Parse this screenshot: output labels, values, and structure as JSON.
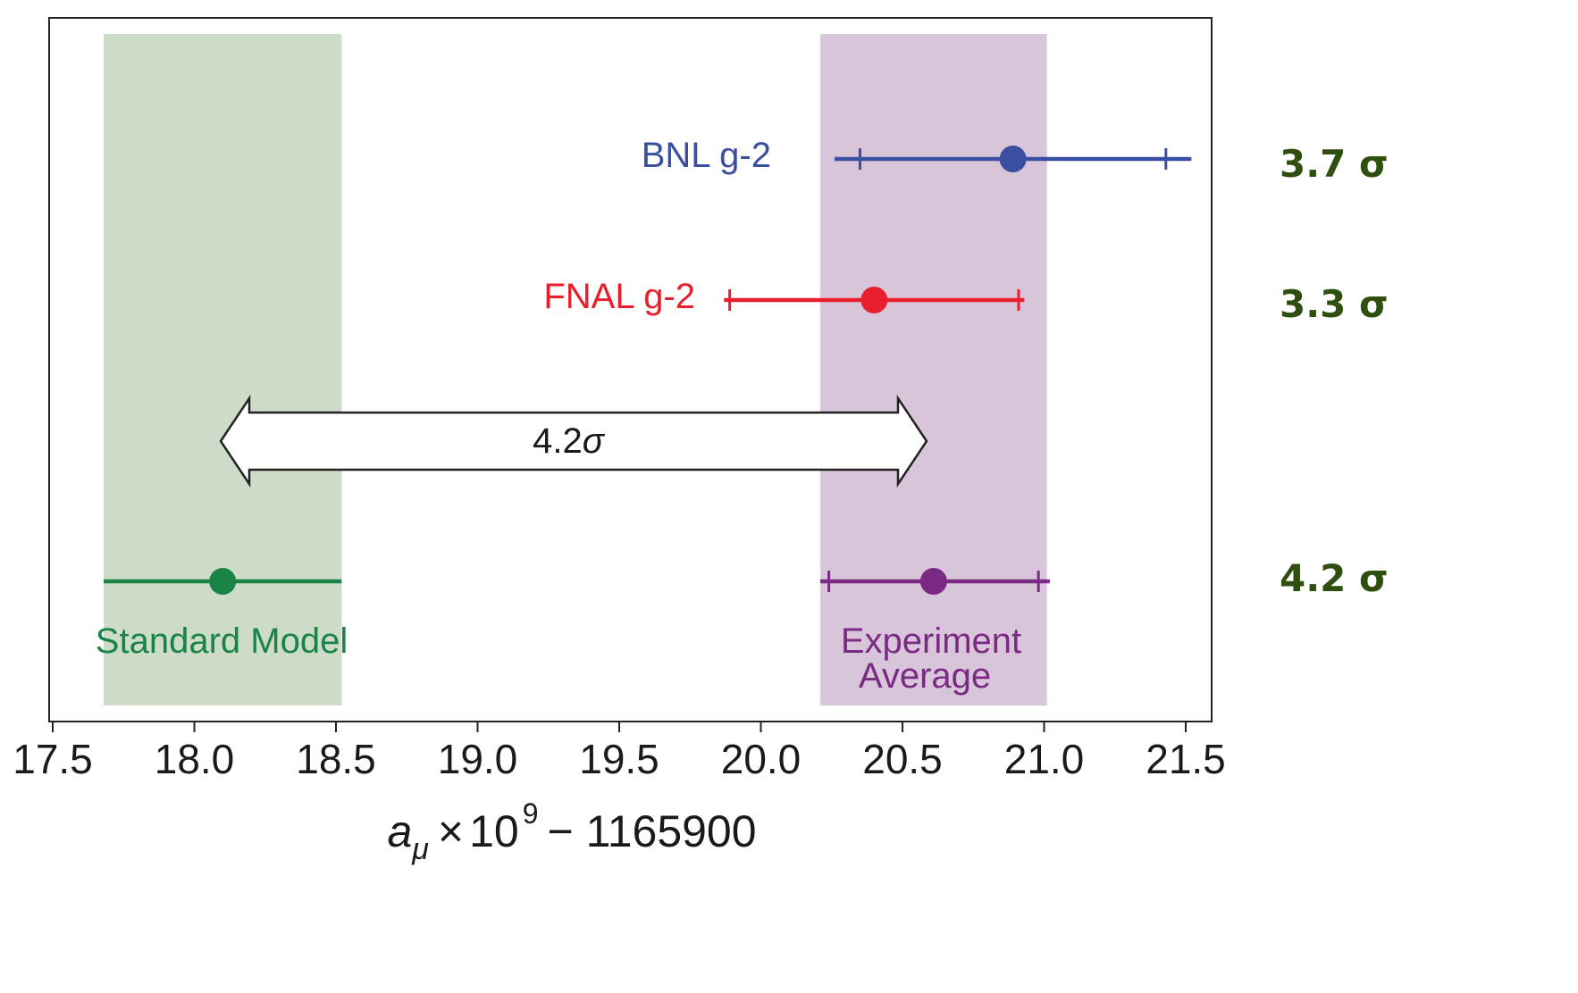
{
  "chart_data": {
    "type": "scatter",
    "title": "",
    "xlabel": {
      "base": "a",
      "subscript": "μ",
      "times": "×",
      "mantissa": "10",
      "exponent": "9",
      "rest": "− 1165900"
    },
    "ylabel": "",
    "xlim": [
      17.5,
      21.6
    ],
    "x_ticks": [
      17.5,
      18.0,
      18.5,
      19.0,
      19.5,
      20.0,
      20.5,
      21.0,
      21.5
    ],
    "x_tick_labels": [
      "17.5",
      "18.0",
      "18.5",
      "19.0",
      "19.5",
      "20.0",
      "20.5",
      "21.0",
      "21.5"
    ],
    "grid": false,
    "bands": [
      {
        "name": "Standard Model",
        "x_min": 17.68,
        "x_max": 18.52,
        "color": "#cddbc9"
      },
      {
        "name": "Experiment Average",
        "x_min": 20.21,
        "x_max": 21.01,
        "color": "#d9c5da"
      }
    ],
    "series": [
      {
        "name": "BNL g-2",
        "value": 20.89,
        "inner_err": [
          20.35,
          21.43
        ],
        "outer_err": [
          20.26,
          21.52
        ],
        "color": "#3a4fa0",
        "sigma": "3.7 σ"
      },
      {
        "name": "FNAL g-2",
        "value": 20.4,
        "inner_err": [
          19.89,
          20.91
        ],
        "outer_err": [
          19.87,
          20.93
        ],
        "color": "#e8202e",
        "sigma": "3.3 σ"
      },
      {
        "name": "Experiment Average",
        "value": 20.61,
        "inner_err": [
          20.24,
          20.98
        ],
        "outer_err": [
          20.21,
          21.02
        ],
        "color": "#7b2a83",
        "sigma": "4.2 σ"
      },
      {
        "name": "Standard Model",
        "value": 18.1,
        "inner_err": null,
        "outer_err": [
          17.68,
          18.52
        ],
        "color": "#1a8445",
        "sigma": ""
      }
    ],
    "labels": {
      "bnl": "BNL g-2",
      "fnal": "FNAL g-2",
      "sm": "Standard Model",
      "avg_line1": "Experiment",
      "avg_line2": "Average"
    },
    "arrow": {
      "x_from": 18.1,
      "x_to": 20.61,
      "label_num": "4.2",
      "label_sym": "σ"
    },
    "sigma_labels": [
      "3.7 σ",
      "3.3 σ",
      "4.2 σ"
    ]
  }
}
